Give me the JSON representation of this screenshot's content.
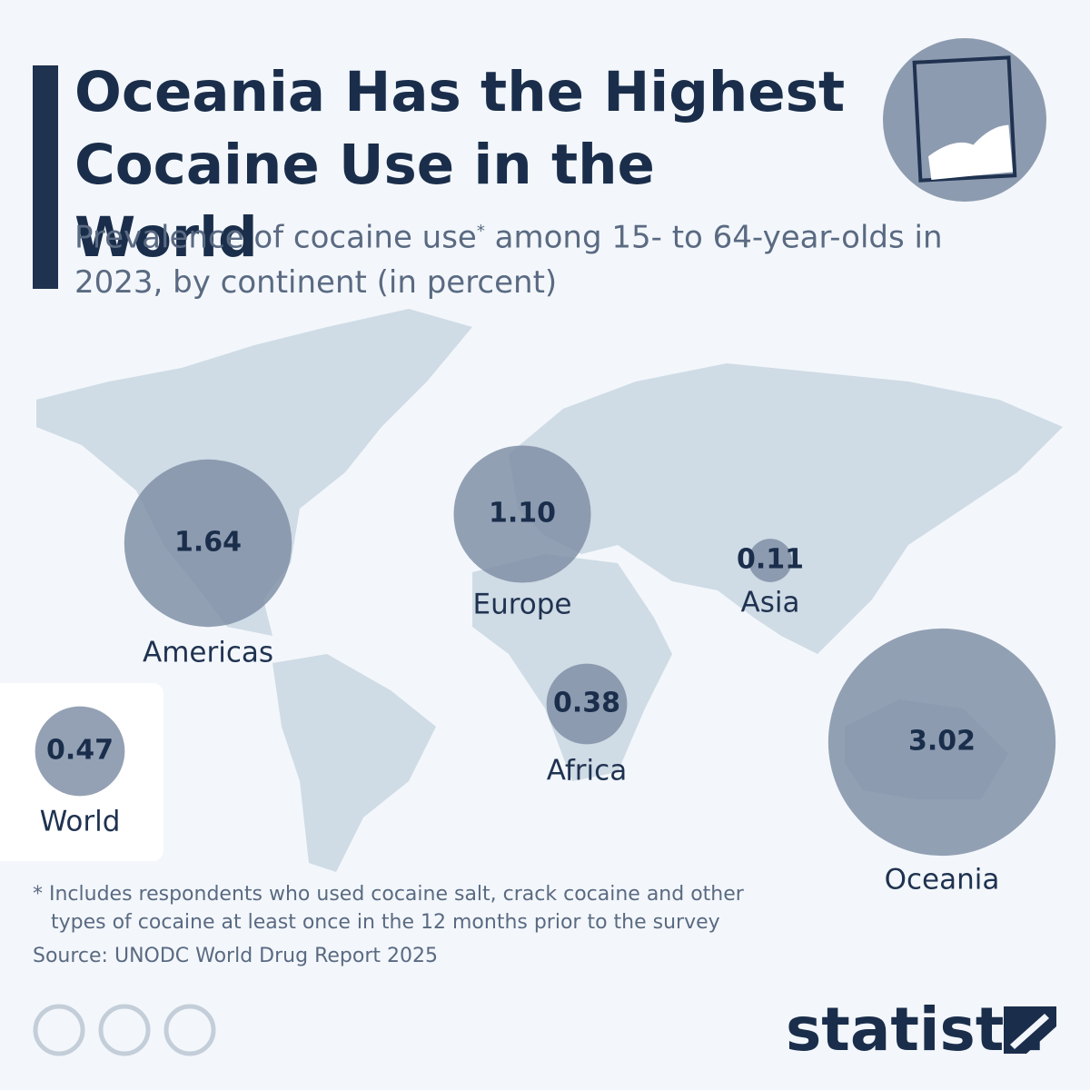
{
  "chart_data": {
    "type": "bubble-map",
    "title": "Oceania Has the Highest Cocaine Use in the World",
    "subtitle": [
      "Prevalence of cocaine use",
      "*",
      " among 15- to 64-year-olds in 2023, by continent (in percent)"
    ],
    "categories": [
      "Americas",
      "Europe",
      "Asia",
      "Africa",
      "Oceania",
      "World"
    ],
    "values": [
      1.64,
      1.1,
      0.11,
      0.38,
      3.02,
      0.47
    ],
    "value_labels": [
      "1.64",
      "1.10",
      "0.11",
      "0.38",
      "3.02",
      "0.47"
    ],
    "color": "#7d8ca3",
    "footnote": [
      "* Includes respondents who used cocaine salt, crack cocaine and other",
      "types of cocaine at least once in the 12 months prior to the survey"
    ],
    "source": "Source: UNODC World Drug Report 2025",
    "brand": "statista"
  }
}
